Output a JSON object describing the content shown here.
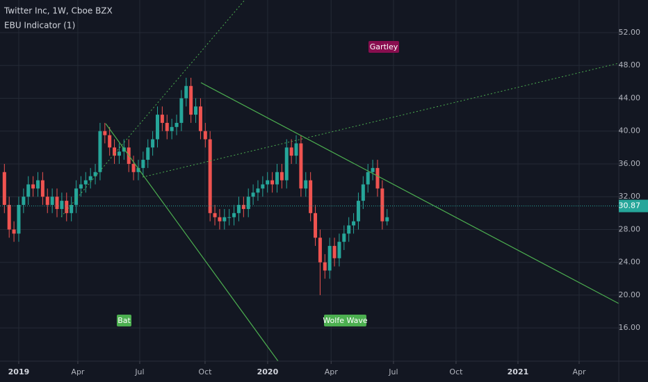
{
  "chart_data": {
    "type": "candlestick",
    "title": "Twitter Inc, 1W, Cboe BZX",
    "indicator": "EBU Indicator (1)",
    "up_color": "#26a69a",
    "down_color": "#ef5350",
    "x": [
      -3,
      -2,
      -1,
      0,
      1,
      2,
      3,
      4,
      5,
      6,
      7,
      8,
      9,
      10,
      11,
      12,
      13,
      14,
      15,
      16,
      17,
      18,
      19,
      20,
      21,
      22,
      23,
      24,
      25,
      26,
      27,
      28,
      29,
      30,
      31,
      32,
      33,
      34,
      35,
      36,
      37,
      38,
      39,
      40,
      41,
      42,
      43,
      44,
      45,
      46,
      47,
      48,
      49,
      50,
      51,
      52,
      53,
      54,
      55,
      56,
      57,
      58,
      59,
      60,
      61,
      62,
      63,
      64,
      65,
      66,
      67,
      68,
      69,
      70,
      71,
      72,
      73,
      74,
      75,
      76,
      77
    ],
    "open": [
      35,
      31,
      28,
      27.5,
      31,
      32,
      33.5,
      33,
      34,
      32,
      31,
      32,
      30.5,
      31.5,
      30,
      31,
      33,
      33.5,
      34,
      34.5,
      35,
      40,
      39.5,
      38,
      37,
      37.5,
      38,
      36,
      35,
      35.5,
      36.5,
      38,
      39,
      42,
      41,
      40,
      40.5,
      41,
      44,
      45.5,
      42,
      43,
      40,
      39,
      30,
      29.5,
      29,
      29.5,
      29.5,
      30,
      31,
      30.5,
      32,
      32.5,
      33,
      33.5,
      34,
      33.5,
      35,
      34,
      38,
      37,
      38.5,
      33,
      34,
      30,
      27,
      24,
      23,
      26,
      24.5,
      26.5,
      27.5,
      28.5,
      29,
      31.5,
      33.5,
      35,
      35.5,
      33,
      29
    ],
    "high": [
      36,
      32,
      29,
      32,
      33,
      34.5,
      34.5,
      35,
      35,
      33,
      33,
      33,
      32.5,
      32.5,
      32,
      34,
      34.5,
      35,
      35.5,
      36,
      41,
      41,
      40.5,
      39,
      38.5,
      39,
      39,
      37,
      36.5,
      37.5,
      39,
      40,
      43,
      43,
      42,
      41.5,
      42,
      45,
      46.5,
      46.5,
      44,
      44,
      41,
      40,
      31,
      30.5,
      30.5,
      30.5,
      31,
      32,
      32,
      33,
      33.5,
      34,
      34.5,
      35,
      35,
      36,
      36,
      39,
      39,
      39.5,
      39.5,
      35,
      35,
      31,
      28,
      25,
      27,
      27,
      27.5,
      28.5,
      29.5,
      30,
      32.5,
      34.5,
      36,
      36.5,
      36.5,
      34,
      30.5
    ],
    "low": [
      30,
      27,
      26.5,
      26.5,
      30,
      31,
      32,
      32,
      31,
      30,
      30,
      29.5,
      29.5,
      29,
      29,
      30,
      32,
      32.5,
      33,
      33.5,
      34,
      38.5,
      37,
      36,
      36,
      36.5,
      35,
      34,
      34,
      34.5,
      35.5,
      37,
      38,
      40,
      39,
      39,
      39.5,
      40,
      43,
      41,
      41,
      39,
      38,
      29,
      28.5,
      28,
      28,
      28.5,
      28.5,
      29,
      29.5,
      29.5,
      31,
      31.5,
      32,
      32.5,
      32.5,
      32.5,
      33,
      33,
      36,
      36,
      32,
      32,
      29,
      26,
      20,
      22,
      22,
      23.5,
      23.5,
      25.5,
      26.5,
      27.5,
      28,
      30.5,
      32.5,
      34,
      32,
      28,
      28.5
    ],
    "close": [
      31,
      28,
      27.5,
      31,
      32,
      33.5,
      33,
      34,
      32,
      31,
      32,
      30.5,
      31.5,
      30,
      31,
      33,
      33.5,
      34,
      34.5,
      35,
      40,
      39.5,
      38,
      37,
      37.5,
      38,
      36,
      35,
      35.5,
      36.5,
      38,
      39,
      42,
      41,
      40,
      40.5,
      41,
      44,
      45.5,
      42,
      43,
      40,
      39,
      30,
      29.5,
      29,
      29.5,
      29.5,
      30,
      31,
      30.5,
      32,
      32.5,
      33,
      33.5,
      34,
      33.5,
      35,
      34,
      38,
      37,
      38.5,
      33,
      34,
      30,
      27,
      24,
      23,
      26,
      24.5,
      26.5,
      27.5,
      28.5,
      29,
      31.5,
      33.5,
      35,
      35.5,
      33,
      29,
      29.5
    ],
    "xlim": [
      -3.92,
      125.44
    ],
    "xticks": [
      {
        "value": 0,
        "label": "2019"
      },
      {
        "value": 12.35,
        "label": "Apr"
      },
      {
        "value": 25.29,
        "label": "Jul"
      },
      {
        "value": 38.95,
        "label": "Oct"
      },
      {
        "value": 52.03,
        "label": "2020"
      },
      {
        "value": 65.3,
        "label": "Apr"
      },
      {
        "value": 78.34,
        "label": "Jul"
      },
      {
        "value": 91.42,
        "label": "Oct"
      },
      {
        "value": 104.36,
        "label": "2021"
      },
      {
        "value": 117.15,
        "label": "Apr"
      }
    ],
    "ylim": [
      11.95,
      55.98
    ],
    "yticks": [
      {
        "value": 16,
        "label": "16.00"
      },
      {
        "value": 20,
        "label": "20.00"
      },
      {
        "value": 24,
        "label": "24.00"
      },
      {
        "value": 28,
        "label": "28.00"
      },
      {
        "value": 32,
        "label": "32.00"
      },
      {
        "value": 36,
        "label": "36.00"
      },
      {
        "value": 40,
        "label": "40.00"
      },
      {
        "value": 44,
        "label": "44.00"
      },
      {
        "value": 48,
        "label": "48.00"
      },
      {
        "value": 52,
        "label": "52.00"
      }
    ],
    "last_price": 30.87,
    "patterns": [
      "Bat",
      "Wolfe Wave",
      "Gartley"
    ],
    "grid": true
  }
}
